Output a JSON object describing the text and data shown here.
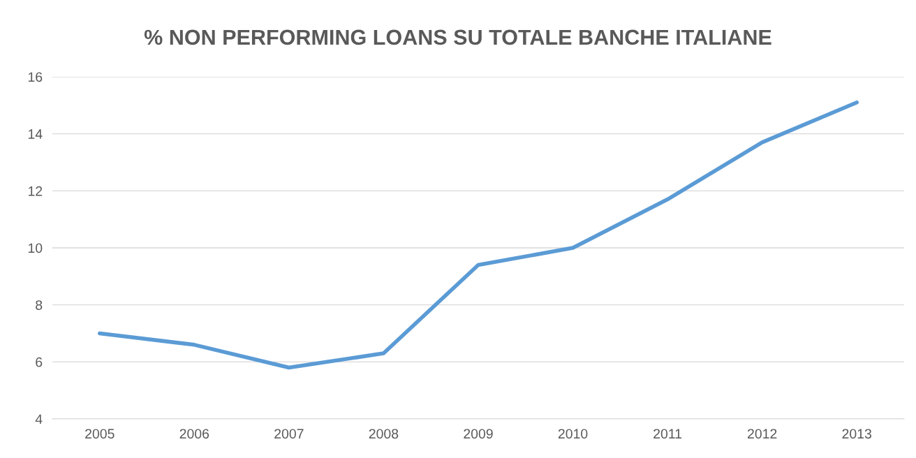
{
  "chart_data": {
    "type": "line",
    "title": "% NON PERFORMING LOANS SU TOTALE BANCHE ITALIANE",
    "categories": [
      "2005",
      "2006",
      "2007",
      "2008",
      "2009",
      "2010",
      "2011",
      "2012",
      "2013"
    ],
    "series": [
      {
        "color": "#5b9bd5",
        "values": [
          7.0,
          6.6,
          5.8,
          6.3,
          9.4,
          10.0,
          11.7,
          13.7,
          15.1
        ]
      }
    ],
    "ylim": [
      4,
      16
    ],
    "yticks": [
      4,
      6,
      8,
      10,
      12,
      14,
      16
    ],
    "grid": "y",
    "legend": false,
    "marker": "none",
    "line_style": "solid"
  }
}
